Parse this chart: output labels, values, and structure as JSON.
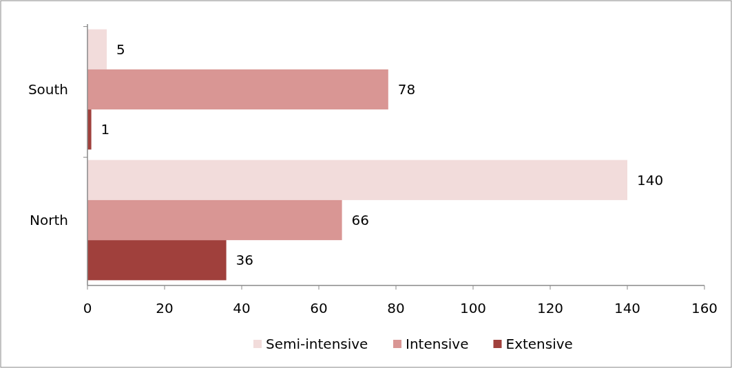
{
  "chart_data": {
    "type": "bar",
    "orientation": "horizontal",
    "categories": [
      "South",
      "North"
    ],
    "series": [
      {
        "name": "Semi-intensive",
        "color": "#f2dcdb",
        "values": [
          5,
          140
        ]
      },
      {
        "name": "Intensive",
        "color": "#d99694",
        "values": [
          78,
          66
        ]
      },
      {
        "name": "Extensive",
        "color": "#a0403c",
        "values": [
          1,
          36
        ]
      }
    ],
    "xlim": [
      0,
      160
    ],
    "xticks": [
      0,
      20,
      40,
      60,
      80,
      100,
      120,
      140,
      160
    ],
    "data_labels": true,
    "legend": "bottom",
    "grid": false
  }
}
